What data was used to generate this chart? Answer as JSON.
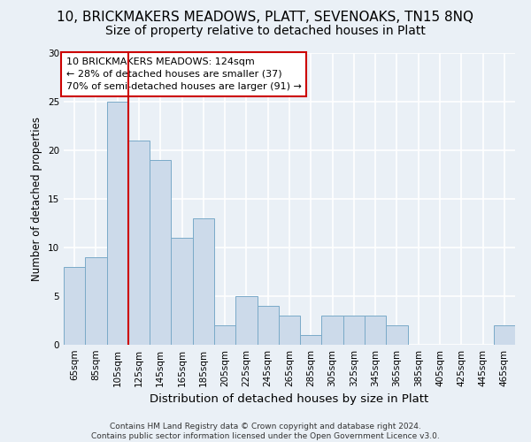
{
  "title": "10, BRICKMAKERS MEADOWS, PLATT, SEVENOAKS, TN15 8NQ",
  "subtitle": "Size of property relative to detached houses in Platt",
  "xlabel": "Distribution of detached houses by size in Platt",
  "ylabel": "Number of detached properties",
  "bar_color": "#ccdaea",
  "bar_edge_color": "#7aaac8",
  "background_color": "#eaf0f6",
  "grid_color": "#ffffff",
  "categories": [
    "65sqm",
    "85sqm",
    "105sqm",
    "125sqm",
    "145sqm",
    "165sqm",
    "185sqm",
    "205sqm",
    "225sqm",
    "245sqm",
    "265sqm",
    "285sqm",
    "305sqm",
    "325sqm",
    "345sqm",
    "365sqm",
    "385sqm",
    "405sqm",
    "425sqm",
    "445sqm",
    "465sqm"
  ],
  "values": [
    8,
    9,
    25,
    21,
    19,
    11,
    13,
    2,
    5,
    4,
    3,
    1,
    3,
    3,
    3,
    2,
    0,
    0,
    0,
    0,
    2
  ],
  "ylim": [
    0,
    30
  ],
  "yticks": [
    0,
    5,
    10,
    15,
    20,
    25,
    30
  ],
  "property_line_x": 2.5,
  "property_line_color": "#cc0000",
  "annotation_text": "10 BRICKMAKERS MEADOWS: 124sqm\n← 28% of detached houses are smaller (37)\n70% of semi-detached houses are larger (91) →",
  "annotation_box_color": "#ffffff",
  "annotation_border_color": "#cc0000",
  "footer_text": "Contains HM Land Registry data © Crown copyright and database right 2024.\nContains public sector information licensed under the Open Government Licence v3.0.",
  "title_fontsize": 11,
  "subtitle_fontsize": 10,
  "xlabel_fontsize": 9.5,
  "ylabel_fontsize": 8.5,
  "tick_fontsize": 7.5,
  "annotation_fontsize": 8,
  "footer_fontsize": 6.5
}
